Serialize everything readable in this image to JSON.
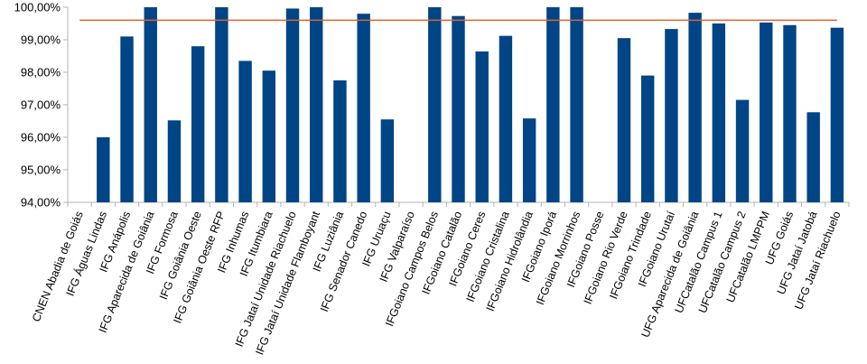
{
  "chart_data": {
    "type": "bar",
    "title": "",
    "xlabel": "",
    "ylabel": "",
    "ylim": [
      94,
      100
    ],
    "yticks": [
      "94,00%",
      "95,00%",
      "96,00%",
      "97,00%",
      "98,00%",
      "99,00%",
      "100,00%"
    ],
    "grid": false,
    "bar_color": "#004586",
    "reference_line": {
      "value": 99.6,
      "color": "#e0622b"
    },
    "categories": [
      "CNEN Abadia de Goiás",
      "IFG Águas Lindas",
      "IFG Anápolis",
      "IFG Aparecida de Goiânia",
      "IFG Formosa",
      "IFG Goiânia Oeste",
      "IFG Goiânia Oeste RFP",
      "IFG Inhumas",
      "IFG Itumbiara",
      "IFG Jataí Unidade Riachuelo",
      "IFG Jataí Unidade Flamboyant",
      "IFG Luziânia",
      "IFG Senador Canedo",
      "IFG Uruaçu",
      "IFG Valparaíso",
      "IFGoiano Campos Belos",
      "IFGoiano Catalão",
      "IFGoiano Ceres",
      "IFGoiano Cristalina",
      "IFGoiano Hidrolândia",
      "IFGoiano Iporá",
      "IFGoiano Morrinhos",
      "IFGoiano Posse",
      "IFGoiano Rio Verde",
      "IFGoiano Trindade",
      "IFGoiano Urutaí",
      "UFG Aparecida de Goiânia",
      "UFCatalão Campus 1",
      "UFCatalão Campus 2",
      "UFCatalão LMPPM",
      "UFG Goiás",
      "UFG Jataí Jatobá",
      "UFG Jataí Riachuelo"
    ],
    "values": [
      null,
      96.0,
      99.1,
      100.0,
      96.52,
      98.8,
      100.0,
      98.35,
      98.05,
      99.96,
      100.0,
      97.75,
      99.8,
      96.55,
      null,
      100.0,
      99.73,
      98.64,
      99.12,
      96.58,
      100.0,
      100.0,
      null,
      99.05,
      97.9,
      99.33,
      99.83,
      99.5,
      97.15,
      99.53,
      99.45,
      96.77,
      99.37
    ]
  }
}
